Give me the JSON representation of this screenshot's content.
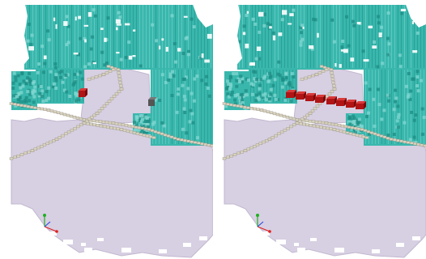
{
  "figure": {
    "panels": [
      {
        "id": "left",
        "scene": "voxel-occupancy-map",
        "highlight_color": "#b01414",
        "highlight_style": "two-isolated-voxels"
      },
      {
        "id": "right",
        "scene": "voxel-occupancy-map",
        "highlight_color": "#b01414",
        "highlight_style": "row-of-voxels"
      }
    ],
    "palette": {
      "wall": "#39b7ad",
      "wall_dark": "#1f8f86",
      "wall_light": "#7fd6cf",
      "floor": "#d7cfe2",
      "floor_edge": "#c2b8d0",
      "path": "#d8d2bf",
      "path_edge": "#9a9486",
      "axis_x": "#e02020",
      "axis_y": "#20b020",
      "axis_z": "#2040e0"
    }
  }
}
